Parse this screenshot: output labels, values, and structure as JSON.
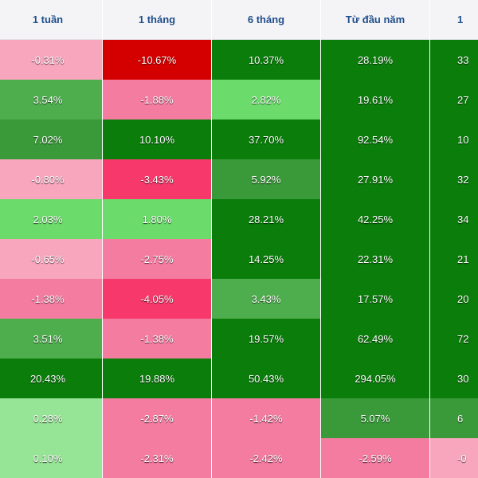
{
  "colors": {
    "deep_red": "#d40000",
    "strong_pink": "#f6386a",
    "mid_pink": "#f47ca0",
    "light_pink": "#f7a6bd",
    "deep_green": "#0b7d0b",
    "mid_green": "#3a9a3a",
    "medium_green": "#4eae4e",
    "bright_green": "#6bdb6b",
    "light_green": "#96e596",
    "header_text": "#1f4e8c",
    "header_bg": "#f4f4f6"
  },
  "table": {
    "columns": [
      "1 tuần",
      "1 tháng",
      "6 tháng",
      "Từ đầu năm",
      "1"
    ],
    "rows": [
      {
        "cells": [
          {
            "value": "-0.31%",
            "color": "light_pink"
          },
          {
            "value": "-10.67%",
            "color": "deep_red"
          },
          {
            "value": "10.37%",
            "color": "deep_green"
          },
          {
            "value": "28.19%",
            "color": "deep_green"
          },
          {
            "value": "33",
            "color": "deep_green"
          }
        ]
      },
      {
        "cells": [
          {
            "value": "3.54%",
            "color": "medium_green"
          },
          {
            "value": "-1.88%",
            "color": "mid_pink"
          },
          {
            "value": "2.82%",
            "color": "bright_green"
          },
          {
            "value": "19.61%",
            "color": "deep_green"
          },
          {
            "value": "27",
            "color": "deep_green"
          }
        ]
      },
      {
        "cells": [
          {
            "value": "7.02%",
            "color": "mid_green"
          },
          {
            "value": "10.10%",
            "color": "deep_green"
          },
          {
            "value": "37.70%",
            "color": "deep_green"
          },
          {
            "value": "92.54%",
            "color": "deep_green"
          },
          {
            "value": "10",
            "color": "deep_green"
          }
        ]
      },
      {
        "cells": [
          {
            "value": "-0.80%",
            "color": "light_pink"
          },
          {
            "value": "-3.43%",
            "color": "strong_pink"
          },
          {
            "value": "5.92%",
            "color": "mid_green"
          },
          {
            "value": "27.91%",
            "color": "deep_green"
          },
          {
            "value": "32",
            "color": "deep_green"
          }
        ]
      },
      {
        "cells": [
          {
            "value": "2.03%",
            "color": "bright_green"
          },
          {
            "value": "1.80%",
            "color": "bright_green"
          },
          {
            "value": "28.21%",
            "color": "deep_green"
          },
          {
            "value": "42.25%",
            "color": "deep_green"
          },
          {
            "value": "34",
            "color": "deep_green"
          }
        ]
      },
      {
        "cells": [
          {
            "value": "-0.65%",
            "color": "light_pink"
          },
          {
            "value": "-2.75%",
            "color": "mid_pink"
          },
          {
            "value": "14.25%",
            "color": "deep_green"
          },
          {
            "value": "22.31%",
            "color": "deep_green"
          },
          {
            "value": "21",
            "color": "deep_green"
          }
        ]
      },
      {
        "cells": [
          {
            "value": "-1.38%",
            "color": "mid_pink"
          },
          {
            "value": "-4.05%",
            "color": "strong_pink"
          },
          {
            "value": "3.43%",
            "color": "medium_green"
          },
          {
            "value": "17.57%",
            "color": "deep_green"
          },
          {
            "value": "20",
            "color": "deep_green"
          }
        ]
      },
      {
        "cells": [
          {
            "value": "3.51%",
            "color": "medium_green"
          },
          {
            "value": "-1.38%",
            "color": "mid_pink"
          },
          {
            "value": "19.57%",
            "color": "deep_green"
          },
          {
            "value": "62.49%",
            "color": "deep_green"
          },
          {
            "value": "72",
            "color": "deep_green"
          }
        ]
      },
      {
        "cells": [
          {
            "value": "20.43%",
            "color": "deep_green"
          },
          {
            "value": "19.88%",
            "color": "deep_green"
          },
          {
            "value": "50.43%",
            "color": "deep_green"
          },
          {
            "value": "294.05%",
            "color": "deep_green"
          },
          {
            "value": "30",
            "color": "deep_green"
          }
        ]
      },
      {
        "cells": [
          {
            "value": "0.28%",
            "color": "light_green"
          },
          {
            "value": "-2.87%",
            "color": "mid_pink"
          },
          {
            "value": "-1.42%",
            "color": "mid_pink"
          },
          {
            "value": "5.07%",
            "color": "mid_green"
          },
          {
            "value": "6",
            "color": "mid_green"
          }
        ]
      },
      {
        "cells": [
          {
            "value": "0.10%",
            "color": "light_green"
          },
          {
            "value": "-2.31%",
            "color": "mid_pink"
          },
          {
            "value": "-2.42%",
            "color": "mid_pink"
          },
          {
            "value": "-2.59%",
            "color": "mid_pink"
          },
          {
            "value": "-0",
            "color": "light_pink"
          }
        ]
      }
    ]
  }
}
